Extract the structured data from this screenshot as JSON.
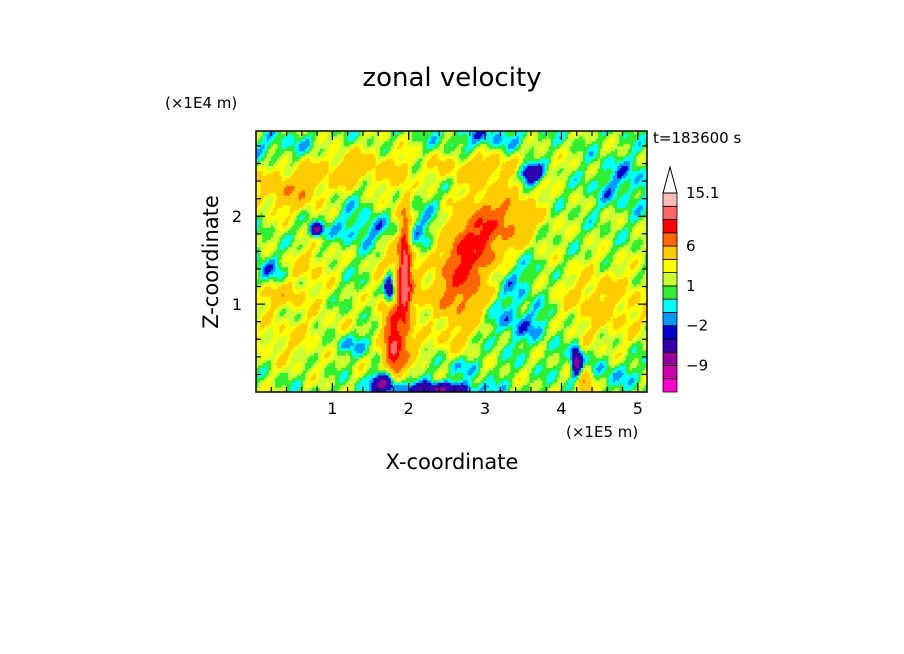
{
  "chart_data": {
    "type": "heatmap",
    "title": "zonal velocity",
    "xlabel": "X-coordinate",
    "ylabel": "Z-coordinate",
    "x_unit": "(×1E5 m)",
    "y_unit": "(×1E4 m)",
    "time_label": "t=183600 s",
    "xlim": [
      0,
      5.12
    ],
    "ylim": [
      0,
      2.97
    ],
    "x_ticks": [
      {
        "value": 1,
        "label": "1"
      },
      {
        "value": 2,
        "label": "2"
      },
      {
        "value": 3,
        "label": "3"
      },
      {
        "value": 4,
        "label": "4"
      },
      {
        "value": 5,
        "label": "5"
      }
    ],
    "y_ticks": [
      {
        "value": 1,
        "label": "1"
      },
      {
        "value": 2,
        "label": "2"
      }
    ],
    "colorbar": {
      "levels": [
        -15,
        -12,
        -9,
        -6,
        -3,
        -2,
        -1,
        0,
        1,
        2,
        3,
        6,
        9,
        12,
        15.1
      ],
      "colors": [
        "#ff00cc",
        "#cc00aa",
        "#990099",
        "#3300aa",
        "#0000cc",
        "#0099ff",
        "#00ffff",
        "#33ee33",
        "#ccff33",
        "#ffff00",
        "#ffcc00",
        "#ff6600",
        "#ff0000",
        "#ff6666",
        "#ffbbbb"
      ],
      "labeled_levels": [
        {
          "value": 15.1,
          "label": "15.1"
        },
        {
          "value": 6,
          "label": "6"
        },
        {
          "value": 1,
          "label": "1"
        },
        {
          "value": -2,
          "label": "−2"
        },
        {
          "value": -9,
          "label": "−9"
        }
      ],
      "extend": "max"
    },
    "features": [
      {
        "x": 0.5,
        "z": 2.3,
        "v": 4.5,
        "sx": 0.35,
        "sz": 0.18
      },
      {
        "x": 1.3,
        "z": 2.55,
        "v": 3.5,
        "sx": 0.35,
        "sz": 0.15
      },
      {
        "x": 0.3,
        "z": 1.1,
        "v": 3,
        "sx": 0.35,
        "sz": 0.1
      },
      {
        "x": 0.6,
        "z": 0.6,
        "v": 2,
        "sx": 0.55,
        "sz": 0.22
      },
      {
        "x": 1.9,
        "z": 1.2,
        "v": 5,
        "sx": 0.18,
        "sz": 0.7
      },
      {
        "x": 1.8,
        "z": 0.5,
        "v": 9,
        "sx": 0.08,
        "sz": 0.25
      },
      {
        "x": 1.95,
        "z": 1.45,
        "v": 10,
        "sx": 0.05,
        "sz": 0.45
      },
      {
        "x": 2.7,
        "z": 1.35,
        "v": 7,
        "sx": 0.25,
        "sz": 0.3
      },
      {
        "x": 2.5,
        "z": 0.8,
        "v": 4,
        "sx": 0.3,
        "sz": 0.25
      },
      {
        "x": 3.2,
        "z": 2.0,
        "v": 5,
        "sx": 0.35,
        "sz": 0.25
      },
      {
        "x": 2.9,
        "z": 1.7,
        "v": 5,
        "sx": 0.25,
        "sz": 0.25
      },
      {
        "x": 3.0,
        "z": 2.55,
        "v": 3,
        "sx": 0.6,
        "sz": 0.12
      },
      {
        "x": 4.3,
        "z": 0.1,
        "v": 6,
        "sx": 0.08,
        "sz": 0.12
      },
      {
        "x": 4.5,
        "z": 1.0,
        "v": 3,
        "sx": 0.5,
        "sz": 0.3
      },
      {
        "x": 0.7,
        "z": 1.45,
        "v": 2.5,
        "sx": 0.2,
        "sz": 0.15
      },
      {
        "x": 3.6,
        "z": 2.5,
        "v": -9,
        "sx": 0.12,
        "sz": 0.08
      },
      {
        "x": 0.8,
        "z": 1.85,
        "v": -8,
        "sx": 0.06,
        "sz": 0.05
      },
      {
        "x": 1.75,
        "z": 1.2,
        "v": -9,
        "sx": 0.05,
        "sz": 0.12
      },
      {
        "x": 1.7,
        "z": 0.12,
        "v": -9,
        "sx": 0.12,
        "sz": 0.08
      },
      {
        "x": 2.35,
        "z": 0.03,
        "v": -7,
        "sx": 0.4,
        "sz": 0.06
      },
      {
        "x": 4.2,
        "z": 0.35,
        "v": -9,
        "sx": 0.05,
        "sz": 0.12
      },
      {
        "x": 1.6,
        "z": 1.85,
        "v": -2.5,
        "sx": 0.35,
        "sz": 0.12
      },
      {
        "x": 0.3,
        "z": 2.8,
        "v": -1.5,
        "sx": 0.35,
        "sz": 0.1
      },
      {
        "x": 1.2,
        "z": 0.55,
        "v": -2.5,
        "sx": 0.3,
        "sz": 0.1
      },
      {
        "x": 2.1,
        "z": 1.8,
        "v": -2.5,
        "sx": 0.2,
        "sz": 0.3
      },
      {
        "x": 2.3,
        "z": 0.8,
        "v": -3,
        "sx": 0.25,
        "sz": 0.15
      },
      {
        "x": 3.5,
        "z": 0.8,
        "v": -2.5,
        "sx": 0.4,
        "sz": 0.18
      },
      {
        "x": 3.0,
        "z": 2.9,
        "v": -2,
        "sx": 0.4,
        "sz": 0.1
      },
      {
        "x": 4.8,
        "z": 2.4,
        "v": -2,
        "sx": 0.3,
        "sz": 0.2
      },
      {
        "x": 3.3,
        "z": 1.3,
        "v": -2,
        "sx": 0.3,
        "sz": 0.2
      },
      {
        "x": 1.1,
        "z": 2.2,
        "v": -1,
        "sx": 0.35,
        "sz": 0.2
      },
      {
        "x": 4.6,
        "z": 0.2,
        "v": -1.5,
        "sx": 0.3,
        "sz": 0.12
      },
      {
        "x": 2.6,
        "z": 0.3,
        "v": -1.5,
        "sx": 0.3,
        "sz": 0.1
      },
      {
        "x": 0.15,
        "z": 1.4,
        "v": -2,
        "sx": 0.15,
        "sz": 0.12
      }
    ]
  }
}
